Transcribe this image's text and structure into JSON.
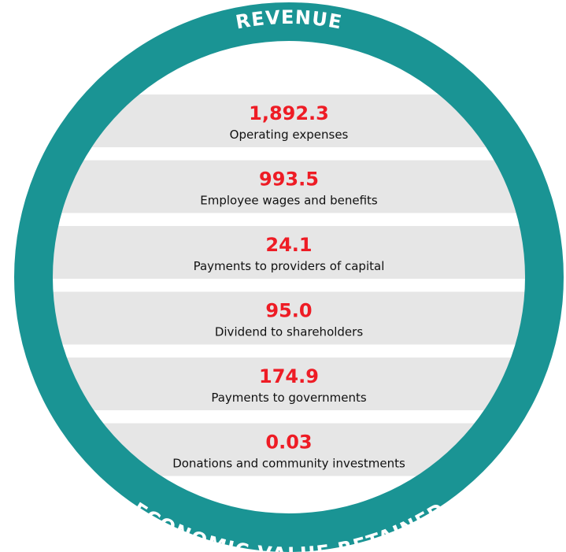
{
  "ring": {
    "top": "REVENUE",
    "bottom": "ECONOMIC VALUE RETAINED"
  },
  "items": [
    {
      "value": "1,892.3",
      "label": "Operating expenses"
    },
    {
      "value": "993.5",
      "label": "Employee wages and benefits"
    },
    {
      "value": "24.1",
      "label": "Payments to providers of capital"
    },
    {
      "value": "95.0",
      "label": "Dividend to shareholders"
    },
    {
      "value": "174.9",
      "label": "Payments to governments"
    },
    {
      "value": "0.03",
      "label": "Donations and community investments"
    }
  ]
}
